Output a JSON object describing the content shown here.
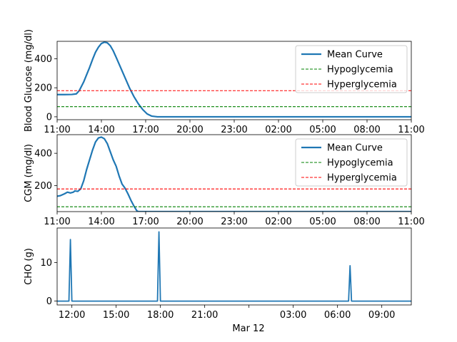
{
  "chart_data": [
    {
      "type": "line",
      "ylabel": "Blood Glucose (mg/dl)",
      "xlabel": "",
      "ylim": [
        -20,
        520
      ],
      "yticks": [
        0,
        200,
        400
      ],
      "xticks": [
        "11:00",
        "14:00",
        "17:00",
        "20:00",
        "23:00",
        "02:00",
        "05:00",
        "08:00",
        "11:00"
      ],
      "x_unit": "hours since 11:00 on the chart's start day",
      "xlim": [
        0,
        24
      ],
      "legend": "upper right",
      "series": [
        {
          "name": "Mean Curve",
          "color": "#1f77b4",
          "style": "solid",
          "points": [
            [
              0,
              153
            ],
            [
              0.5,
              153
            ],
            [
              1,
              154
            ],
            [
              1.3,
              158
            ],
            [
              1.5,
              180
            ],
            [
              1.8,
              240
            ],
            [
              2,
              290
            ],
            [
              2.2,
              340
            ],
            [
              2.4,
              395
            ],
            [
              2.6,
              445
            ],
            [
              2.8,
              480
            ],
            [
              3,
              505
            ],
            [
              3.2,
              514
            ],
            [
              3.4,
              510
            ],
            [
              3.6,
              490
            ],
            [
              3.8,
              455
            ],
            [
              4,
              410
            ],
            [
              4.3,
              340
            ],
            [
              4.6,
              270
            ],
            [
              4.9,
              200
            ],
            [
              5.2,
              140
            ],
            [
              5.5,
              90
            ],
            [
              5.8,
              50
            ],
            [
              6.1,
              20
            ],
            [
              6.4,
              5
            ],
            [
              6.8,
              0
            ],
            [
              24,
              0
            ]
          ]
        },
        {
          "name": "Hypoglycemia",
          "color": "#008000",
          "style": "dashed",
          "points": [
            [
              0,
              70
            ],
            [
              24,
              70
            ]
          ]
        },
        {
          "name": "Hyperglycemia",
          "color": "#ff0000",
          "style": "dashed",
          "points": [
            [
              0,
              180
            ],
            [
              24,
              180
            ]
          ]
        }
      ]
    },
    {
      "type": "line",
      "ylabel": "CGM (mg/dl)",
      "xlabel": "",
      "ylim": [
        40,
        515
      ],
      "yticks": [
        200,
        400
      ],
      "xticks": [
        "11:00",
        "14:00",
        "17:00",
        "20:00",
        "23:00",
        "02:00",
        "05:00",
        "08:00",
        "11:00"
      ],
      "x_unit": "hours since 11:00 on the chart's start day",
      "xlim": [
        0,
        24
      ],
      "legend": "upper right",
      "series": [
        {
          "name": "Mean Curve",
          "color": "#1f77b4",
          "style": "solid",
          "points": [
            [
              0,
              135
            ],
            [
              0.2,
              138
            ],
            [
              0.5,
              150
            ],
            [
              0.7,
              160
            ],
            [
              0.9,
              155
            ],
            [
              1.1,
              160
            ],
            [
              1.2,
              168
            ],
            [
              1.4,
              165
            ],
            [
              1.6,
              180
            ],
            [
              1.8,
              230
            ],
            [
              2,
              300
            ],
            [
              2.2,
              360
            ],
            [
              2.4,
              420
            ],
            [
              2.6,
              470
            ],
            [
              2.8,
              495
            ],
            [
              3,
              500
            ],
            [
              3.2,
              490
            ],
            [
              3.4,
              460
            ],
            [
              3.6,
              410
            ],
            [
              3.8,
              360
            ],
            [
              4,
              320
            ],
            [
              4.2,
              260
            ],
            [
              4.4,
              210
            ],
            [
              4.6,
              185
            ],
            [
              4.8,
              150
            ],
            [
              5,
              110
            ],
            [
              5.2,
              75
            ],
            [
              5.4,
              45
            ],
            [
              5.5,
              40
            ],
            [
              24,
              40
            ]
          ]
        },
        {
          "name": "Hypoglycemia",
          "color": "#008000",
          "style": "dashed",
          "points": [
            [
              0,
              70
            ],
            [
              24,
              70
            ]
          ]
        },
        {
          "name": "Hyperglycemia",
          "color": "#ff0000",
          "style": "dashed",
          "points": [
            [
              0,
              180
            ],
            [
              24,
              180
            ]
          ]
        }
      ]
    },
    {
      "type": "line",
      "ylabel": "CHO (g)",
      "xlabel": "Mar 12",
      "ylim": [
        -1,
        19
      ],
      "yticks": [
        0,
        10
      ],
      "xticks": [
        "12:00",
        "15:00",
        "18:00",
        "21:00",
        "",
        "03:00",
        "06:00",
        "09:00"
      ],
      "x_unit": "hours since 11:00 on the chart's start day",
      "xlim": [
        0,
        24
      ],
      "series": [
        {
          "name": "",
          "color": "#1f77b4",
          "style": "solid",
          "points": [
            [
              0,
              0
            ],
            [
              0.8,
              0
            ],
            [
              0.9,
              16
            ],
            [
              1.0,
              0
            ],
            [
              6.8,
              0
            ],
            [
              6.9,
              18
            ],
            [
              7.0,
              0
            ],
            [
              19.75,
              0
            ],
            [
              19.85,
              9.2
            ],
            [
              19.95,
              0
            ],
            [
              24,
              0
            ]
          ]
        }
      ]
    }
  ]
}
